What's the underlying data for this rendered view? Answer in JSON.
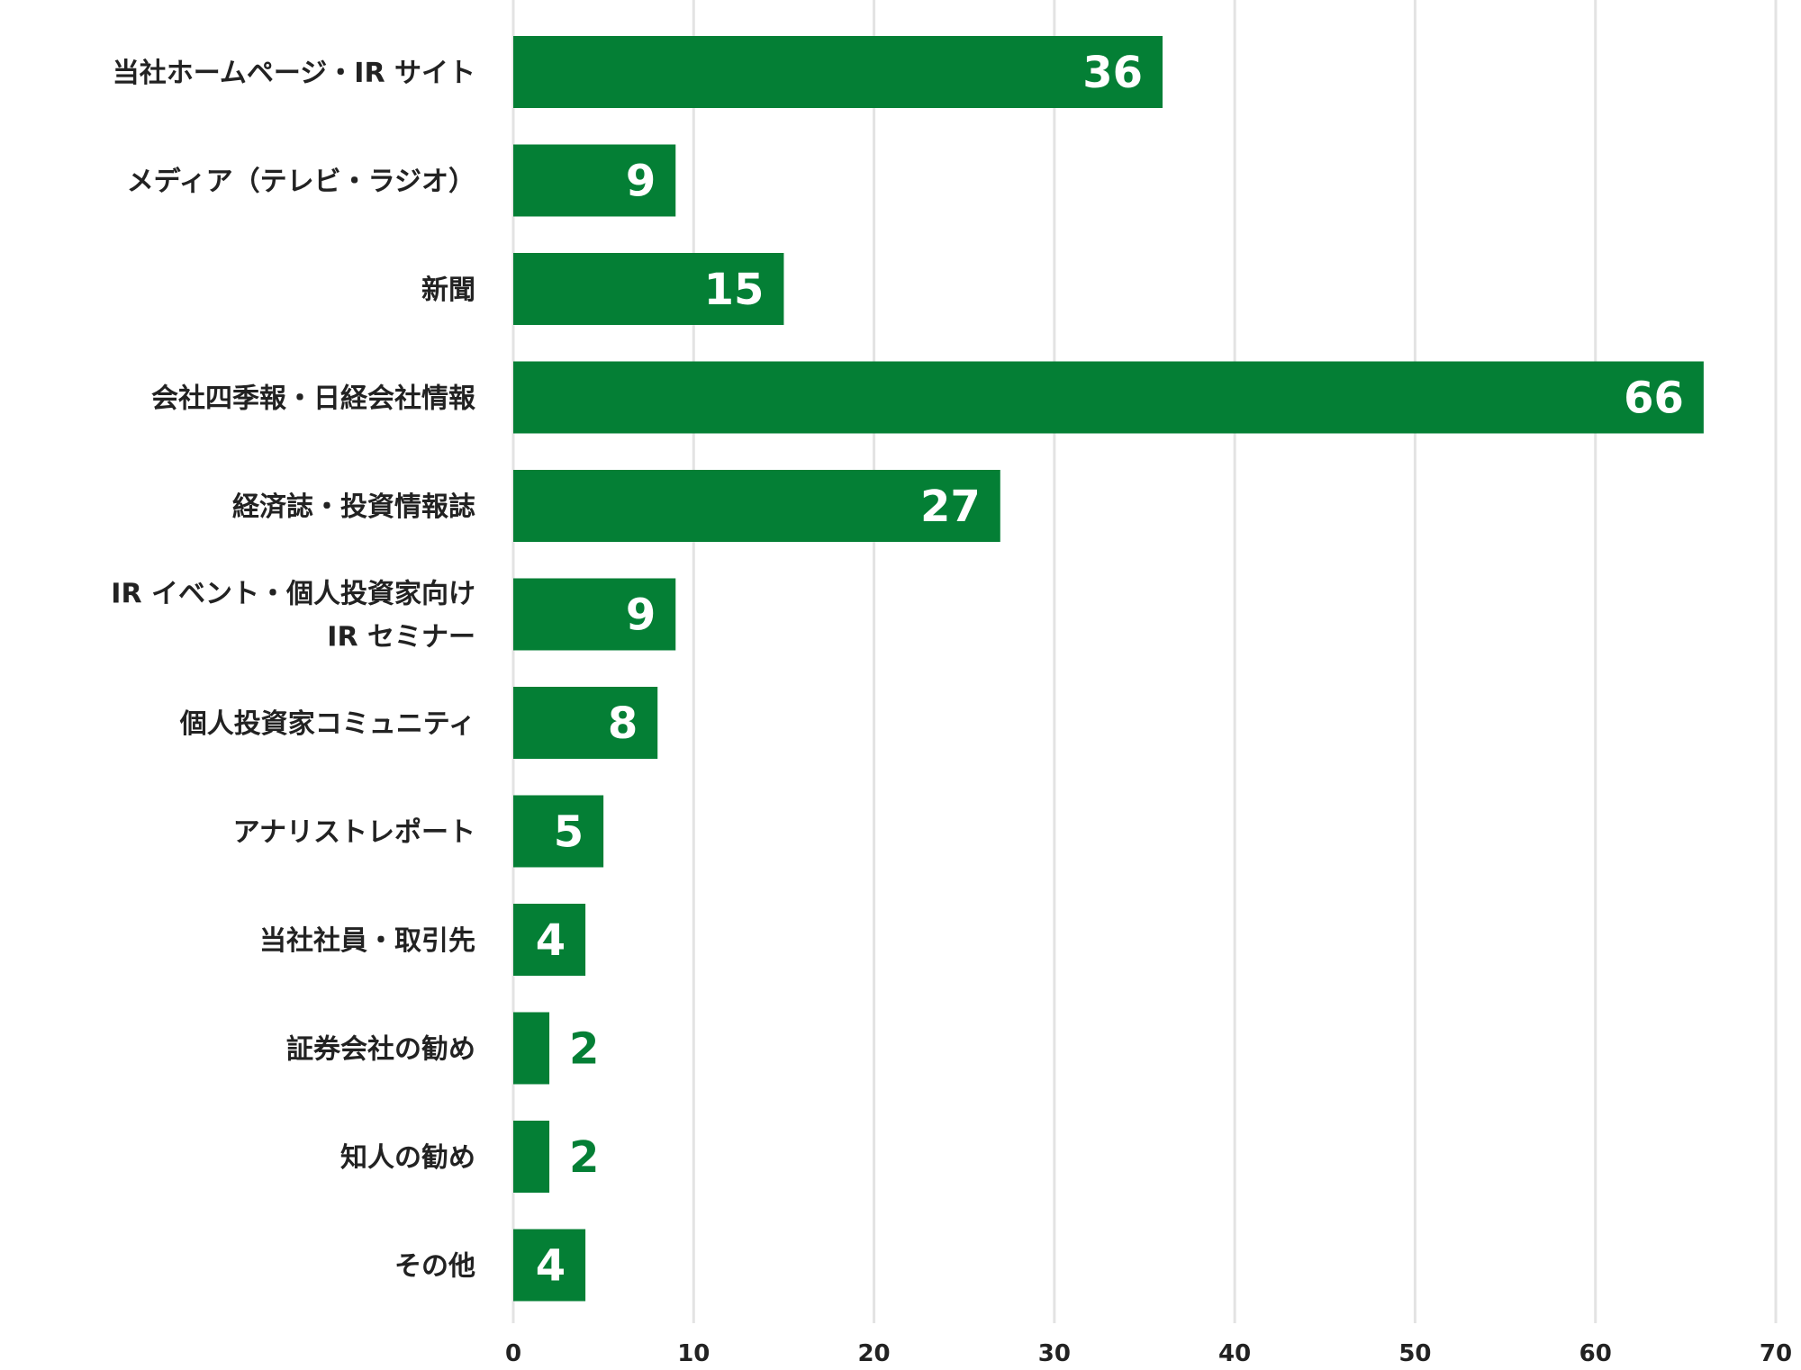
{
  "chart_data": {
    "type": "bar",
    "orientation": "horizontal",
    "categories": [
      [
        "当社ホームページ・IR サイト"
      ],
      [
        "メディア（テレビ・ラジオ）"
      ],
      [
        "新聞"
      ],
      [
        "会社四季報・日経会社情報"
      ],
      [
        "経済誌・投資情報誌"
      ],
      [
        "IR イベント・個人投資家向け",
        "IR セミナー"
      ],
      [
        "個人投資家コミュニティ"
      ],
      [
        "アナリストレポート"
      ],
      [
        "当社社員・取引先"
      ],
      [
        "証券会社の勧め"
      ],
      [
        "知人の勧め"
      ],
      [
        "その他"
      ]
    ],
    "values": [
      36,
      9,
      15,
      66,
      27,
      9,
      8,
      5,
      4,
      2,
      2,
      4
    ],
    "xlim": [
      0,
      70
    ],
    "ticks": [
      0,
      10,
      20,
      30,
      40,
      50,
      60,
      70
    ],
    "tick_labels": [
      "0",
      "10",
      "20",
      "30",
      "40",
      "50",
      "60",
      "70"
    ],
    "grid": true,
    "legend": "none",
    "title": "",
    "xlabel": "",
    "ylabel": ""
  },
  "colors": {
    "bar": "#047f35",
    "label_inside": "#ffffff",
    "label_outside": "#047f35",
    "grid": "#e3e3e3",
    "text": "#222222"
  }
}
